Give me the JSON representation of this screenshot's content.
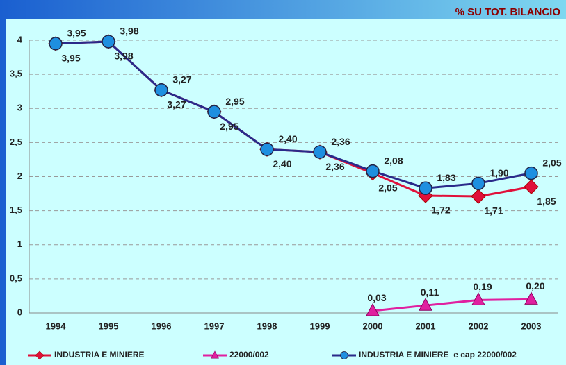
{
  "chart_data": {
    "type": "line",
    "title": "% SU TOT. BILANCIO",
    "categories": [
      "1994",
      "1995",
      "1996",
      "1997",
      "1998",
      "1999",
      "2000",
      "2001",
      "2002",
      "2003"
    ],
    "series": [
      {
        "name": "INDUSTRIA E MINIERE",
        "color": "#e0103a",
        "marker": "diamond",
        "values": [
          3.95,
          3.98,
          3.27,
          2.95,
          2.4,
          2.36,
          2.05,
          1.72,
          1.71,
          1.85
        ],
        "value_labels": [
          "3,95",
          "3,98",
          "3,27",
          "2,95",
          "2,40",
          "2,36",
          "2,05",
          "1,72",
          "1,71",
          "1,85"
        ]
      },
      {
        "name": "22000/002",
        "color": "#e020a0",
        "marker": "triangle",
        "values": [
          null,
          null,
          null,
          null,
          null,
          null,
          0.03,
          0.11,
          0.19,
          0.2
        ],
        "value_labels": [
          null,
          null,
          null,
          null,
          null,
          null,
          "0,03",
          "0,11",
          "0,19",
          "0,20"
        ]
      },
      {
        "name": "INDUSTRIA E MINIERE  e cap 22000/002",
        "color": "#2a2a8a",
        "marker_color": "#1e8fe0",
        "marker": "circle",
        "values": [
          3.95,
          3.98,
          3.27,
          2.95,
          2.4,
          2.36,
          2.08,
          1.83,
          1.9,
          2.05
        ],
        "value_labels": [
          "3,95",
          "3,98",
          "3,27",
          "2,95",
          "2,40",
          "2,36",
          "2,08",
          "1,83",
          "1,90",
          "2,05"
        ]
      }
    ],
    "ylim": [
      0,
      4
    ],
    "yticks": [
      0,
      {
        "value": 0.5,
        "label": "0,5"
      },
      1,
      {
        "value": 1.5,
        "label": "1,5"
      },
      2,
      {
        "value": 2.5,
        "label": "2,5"
      },
      3,
      {
        "value": 3.5,
        "label": "3,5"
      },
      4
    ],
    "grid": true
  }
}
